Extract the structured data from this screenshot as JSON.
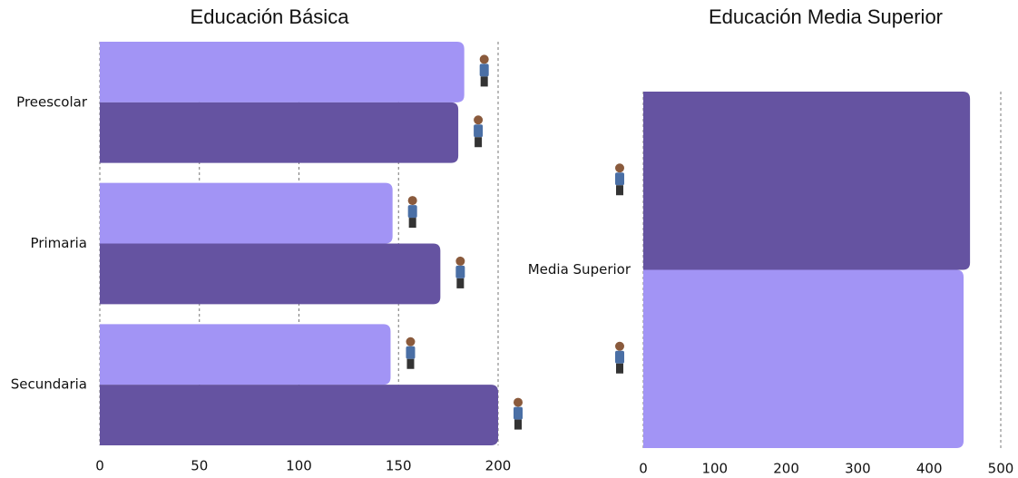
{
  "chart_data": [
    {
      "type": "bar",
      "orientation": "horizontal",
      "title": "Educación Básica",
      "categories": [
        "Preescolar",
        "Primaria",
        "Secundaria"
      ],
      "series": [
        {
          "color": "#a294f5",
          "values": [
            183,
            147,
            146
          ]
        },
        {
          "color": "#6553a1",
          "values": [
            180,
            171,
            200
          ]
        }
      ],
      "xlim": [
        0,
        200
      ],
      "xticks": [
        0,
        50,
        100,
        150,
        200
      ],
      "grid": true
    },
    {
      "type": "bar",
      "orientation": "horizontal",
      "title": "Educación Media Superior",
      "categories": [
        "Media Superior"
      ],
      "series": [
        {
          "color": "#6553a1",
          "values": [
            457
          ]
        },
        {
          "color": "#a294f5",
          "values": [
            448
          ]
        }
      ],
      "xlim": [
        0,
        500
      ],
      "xticks": [
        0,
        100,
        200,
        300,
        400,
        500
      ],
      "grid": true
    }
  ]
}
